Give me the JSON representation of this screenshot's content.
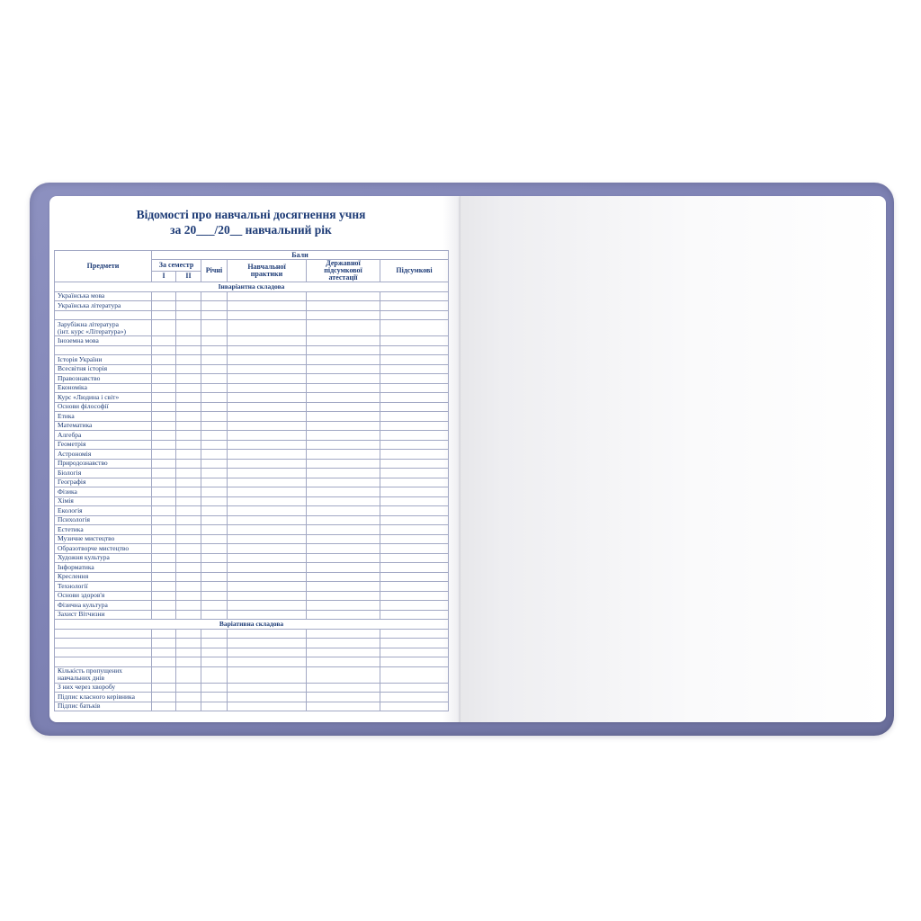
{
  "page": {
    "title_line1": "Відомості про навчальні досягнення учня",
    "title_line2": "за 20___/20__ навчальний рік"
  },
  "table": {
    "header": {
      "predmety": "Предмети",
      "baly": "Бали",
      "za_semestr": "За семестр",
      "sem1": "I",
      "sem2": "II",
      "richni": "Річні",
      "praktyky": "Навчальної\nпрактики",
      "atestatsii": "Державної\nпідсумкової\nатестації",
      "pidsumkovi": "Підсумкові"
    },
    "invariant_section": "Інваріантна складова",
    "invariant_rows": [
      "Українська мова",
      "Українська література",
      "",
      [
        "Зарубіжна література",
        "(інт. курс «Література»)"
      ],
      "Іноземна мова",
      "",
      "Історія України",
      "Всесвітня історія",
      "Правознавство",
      "Економіка",
      "Курс «Людина і світ»",
      "Основи філософії",
      "Етика",
      "Математика",
      "Алгебра",
      "Геометрія",
      "Астрономія",
      "Природознавство",
      "Біологія",
      "Географія",
      "Фізика",
      "Хімія",
      "Екологія",
      "Психологія",
      "Естетика",
      "Музичне мистецтво",
      "Образотворче мистецтво",
      "Художня культура",
      "Інформатика",
      "Креслення",
      "Технології",
      "Основи здоров'я",
      "Фізична культура",
      "Захист Вітчизни"
    ],
    "variative_section": "Варіативна складова",
    "variative_rows": [
      "",
      "",
      "",
      ""
    ],
    "summary_rows": [
      [
        "Кількість пропущених",
        "навчальних днів"
      ],
      "З них через хворобу",
      "Підпис класного керівника",
      "Підпис батьків"
    ]
  },
  "colors": {
    "ink": "#1d3b76",
    "grid": "#a2a8c4",
    "cover": "#7e82b4",
    "cover-dark": "#6b6f9c",
    "cover-light": "#8d91c0"
  }
}
